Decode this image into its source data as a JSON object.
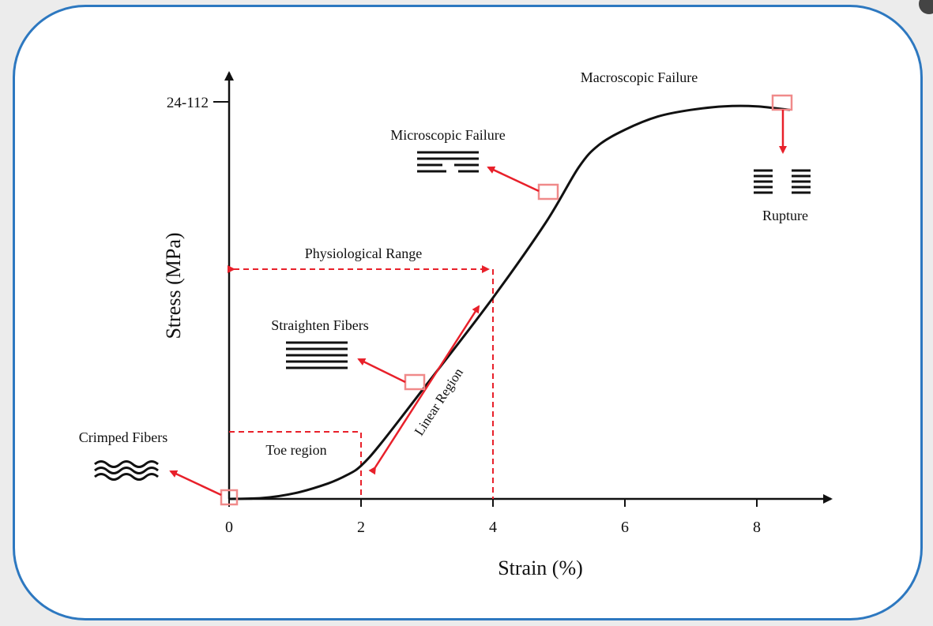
{
  "chart_data": {
    "type": "line",
    "title": "",
    "xlabel": "Strain (%)",
    "ylabel": "Stress (MPa)",
    "xlim": [
      0,
      9
    ],
    "x_ticks": [
      "0",
      "2",
      "4",
      "6",
      "8"
    ],
    "y_tick_label": "24-112",
    "grid": false,
    "series": [
      {
        "name": "",
        "x": [
          0,
          0.5,
          1.0,
          1.5,
          1.8,
          2.0,
          2.3,
          3.0,
          4.0,
          4.8,
          5.3,
          5.6,
          6.0,
          6.5,
          7.0,
          7.5,
          8.0,
          8.5
        ],
        "y": [
          0,
          0.2,
          1.3,
          3.5,
          5.5,
          7.5,
          12.5,
          26.0,
          45.5,
          62.5,
          75.0,
          80.0,
          83.5,
          86.5,
          88.0,
          88.8,
          88.8,
          88.0
        ]
      }
    ],
    "annotations": {
      "macroscopic_failure": "Macroscopic Failure",
      "microscopic_failure": "Microscopic Failure",
      "rupture": "Rupture",
      "physiological_range": "Physiological Range",
      "straighten_fibers": "Straighten Fibers",
      "linear_region": "Linear Region",
      "crimped_fibers": "Crimped Fibers",
      "toe_region": "Toe region"
    },
    "colors": {
      "curve": "#111111",
      "annotation": "#e8202a",
      "marker": "#f08a8a",
      "frame": "#2d78c0"
    }
  }
}
